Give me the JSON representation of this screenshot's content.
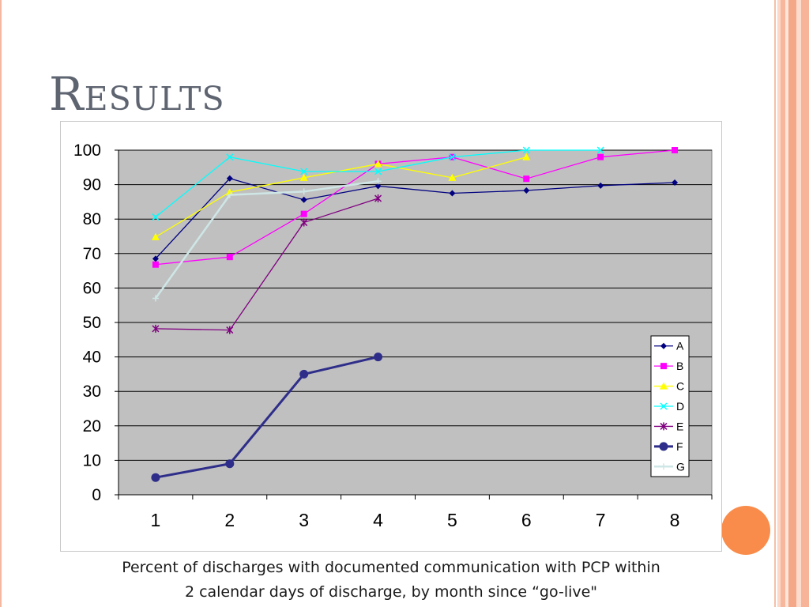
{
  "slide": {
    "title": "Results",
    "caption_line1": "Percent of discharges with documented communication with PCP within",
    "caption_line2": "2 calendar days of discharge, by month since “go-live\""
  },
  "colors": {
    "plot_background": "#c0c0c0",
    "frame_accent": "#f4a888",
    "accent_circle": "#f98c4a"
  },
  "chart_data": {
    "type": "line",
    "title": "",
    "xlabel": "",
    "ylabel": "",
    "x": [
      1,
      2,
      3,
      4,
      5,
      6,
      7,
      8
    ],
    "ylim": [
      0,
      100
    ],
    "yticks": [
      0,
      10,
      20,
      30,
      40,
      50,
      60,
      70,
      80,
      90,
      100
    ],
    "grid": true,
    "legend_position": "right",
    "series": [
      {
        "name": "A",
        "color": "#000080",
        "marker": "diamond",
        "values": [
          68.5,
          91.8,
          85.6,
          89.6,
          87.5,
          88.3,
          89.7,
          90.6
        ]
      },
      {
        "name": "B",
        "color": "#ff00ff",
        "marker": "square",
        "values": [
          66.8,
          69.0,
          81.5,
          96.0,
          98.0,
          91.7,
          98.0,
          100
        ]
      },
      {
        "name": "C",
        "color": "#ffff00",
        "marker": "triangle",
        "values": [
          74.8,
          87.8,
          92.0,
          96.0,
          92.0,
          98.0,
          null,
          null
        ]
      },
      {
        "name": "D",
        "color": "#00ffff",
        "marker": "x",
        "values": [
          80.6,
          98.0,
          93.8,
          93.8,
          98.0,
          100,
          100,
          null
        ]
      },
      {
        "name": "E",
        "color": "#800080",
        "marker": "star",
        "values": [
          48.2,
          47.8,
          79.0,
          86.0,
          null,
          null,
          null,
          null
        ]
      },
      {
        "name": "F",
        "color": "#2e2e8a",
        "marker": "circle",
        "values": [
          5.0,
          9.0,
          35.0,
          40.0,
          null,
          null,
          null,
          null
        ]
      },
      {
        "name": "G",
        "color": "#cfe6e6",
        "marker": "plus",
        "values": [
          57.0,
          87.0,
          88.0,
          91.0,
          null,
          null,
          null,
          null
        ]
      }
    ]
  }
}
